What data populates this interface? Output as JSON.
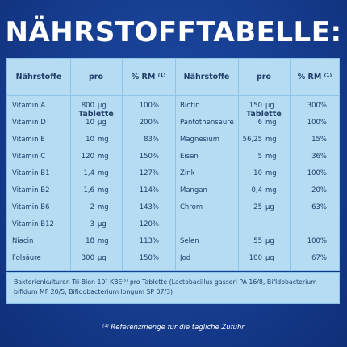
{
  "title": "NÄHRSTOFFTABELLE:",
  "headers": {
    "naehrstoffe_left": "Nährstoffe",
    "pro_tablette_left": "pro Tablette",
    "rm_left": "% RM ⁽¹⁾",
    "naehrstoffe_right": "Nährstoffe",
    "pro_tablette_right": "pro Tablette",
    "rm_right": "% RM ⁽¹⁾"
  },
  "left_rows": [
    {
      "name": "Vitamin A",
      "amount": "800",
      "unit": "µg",
      "rm": "100%"
    },
    {
      "name": "Vitamin D",
      "amount": "10",
      "unit": "µg",
      "rm": "200%"
    },
    {
      "name": "Vitamin E",
      "amount": "10",
      "unit": "mg",
      "rm": "83%"
    },
    {
      "name": "Vitamin C",
      "amount": "120",
      "unit": "mg",
      "rm": "150%"
    },
    {
      "name": "Vitamin B1",
      "amount": "1,4",
      "unit": "mg",
      "rm": "127%"
    },
    {
      "name": "Vitamin B2",
      "amount": "1,6",
      "unit": "mg",
      "rm": "114%"
    },
    {
      "name": "Vitamin B6",
      "amount": "2",
      "unit": "mg",
      "rm": "143%"
    },
    {
      "name": "Vitamin B12",
      "amount": "3",
      "unit": "µg",
      "rm": "120%"
    },
    {
      "name": "Niacin",
      "amount": "18",
      "unit": "mg",
      "rm": "113%"
    },
    {
      "name": "Folsäure",
      "amount": "300",
      "unit": "µg",
      "rm": "150%"
    }
  ],
  "right_rows": [
    {
      "name": "Biotin",
      "amount": "150",
      "unit": "µg",
      "rm": "300%"
    },
    {
      "name": "Pantothensäure",
      "amount": "6",
      "unit": "mg",
      "rm": "100%"
    },
    {
      "name": "Magnesium",
      "amount": "56,25",
      "unit": "mg",
      "rm": "15%"
    },
    {
      "name": "Eisen",
      "amount": "5",
      "unit": "mg",
      "rm": "36%"
    },
    {
      "name": "Zink",
      "amount": "10",
      "unit": "mg",
      "rm": "100%"
    },
    {
      "name": "Mangan",
      "amount": "0,4",
      "unit": "mg",
      "rm": "20%"
    },
    {
      "name": "Chrom",
      "amount": "25",
      "unit": "µg",
      "rm": "63%"
    },
    {
      "name": "",
      "amount": "",
      "unit": "",
      "rm": ""
    },
    {
      "name": "Selen",
      "amount": "55",
      "unit": "µg",
      "rm": "100%"
    },
    {
      "name": "Jod",
      "amount": "100",
      "unit": "µg",
      "rm": "67%"
    }
  ],
  "bacteria_note": "Bakterienkulturen Tri-Bion 10⁷ KBE⁽²⁾ pro Tablette (Lactobacillus gasseri PA 16/8, Bifidobacterium bifidum MF 20/5, Bifidobacterium longum SP 07/3)",
  "reference_note": "⁽¹⁾ Referenzmenge für die tägliche Zufuhr"
}
